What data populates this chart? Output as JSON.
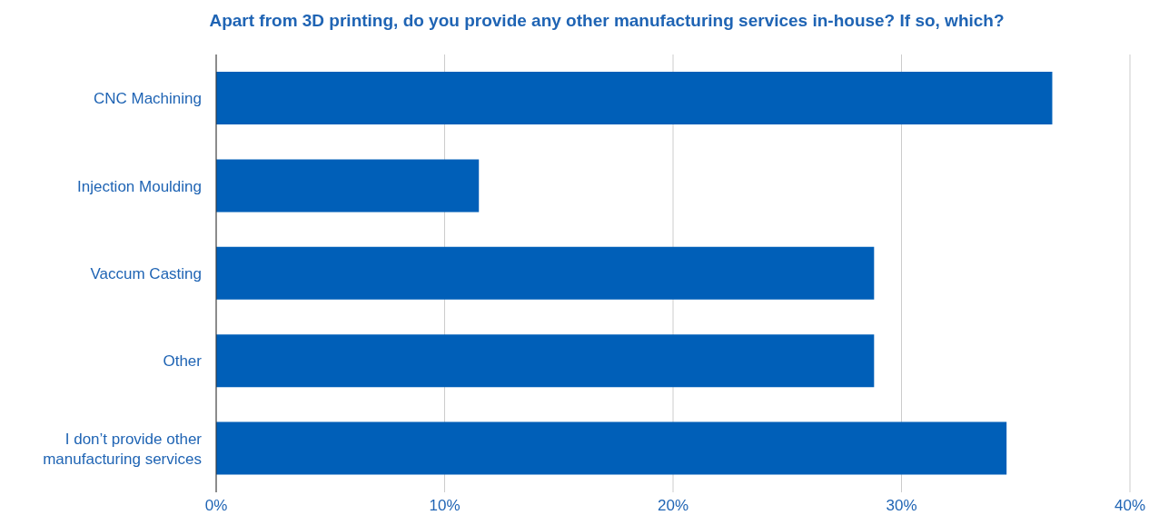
{
  "chart_data": {
    "type": "bar",
    "orientation": "horizontal",
    "title": "Apart from 3D printing, do you provide any other manufacturing services in-house? If so, which?",
    "categories": [
      "CNC Machining",
      "Injection Moulding",
      "Vaccum Casting",
      "Other",
      "I don’t provide other manufacturing services"
    ],
    "values": [
      36.6,
      11.5,
      28.8,
      28.8,
      34.6
    ],
    "color": "#005fb8",
    "xlim": [
      0,
      40
    ],
    "xticks": [
      {
        "value": 0,
        "label": "0%"
      },
      {
        "value": 10,
        "label": "10%"
      },
      {
        "value": 20,
        "label": "20%"
      },
      {
        "value": 30,
        "label": "30%"
      },
      {
        "value": 40,
        "label": "40%"
      }
    ],
    "grid": "x",
    "legend": false
  }
}
